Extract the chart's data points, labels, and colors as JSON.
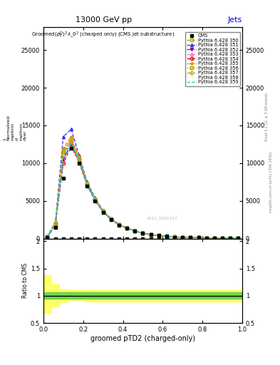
{
  "title_top": "13000 GeV pp",
  "title_right": "Jets",
  "xlabel": "groomed pTD2 (charged-only)",
  "ylabel_ratio": "Ratio to CMS",
  "watermark": "mcplots.cern.ch [arXiv:1306.3436]",
  "watermark2": "Rivet 3.1.10, ≥ 3.1M events",
  "ref_label": "CMS",
  "series": [
    {
      "label": "Pythia 6.428 350",
      "color": "#aaaa00",
      "linestyle": "--",
      "marker": "s",
      "fillstyle": "none"
    },
    {
      "label": "Pythia 6.428 351",
      "color": "#3333ff",
      "linestyle": "--",
      "marker": "^",
      "fillstyle": "full"
    },
    {
      "label": "Pythia 6.428 352",
      "color": "#7700bb",
      "linestyle": "-.",
      "marker": "v",
      "fillstyle": "full"
    },
    {
      "label": "Pythia 6.428 353",
      "color": "#ff66bb",
      "linestyle": "--",
      "marker": "^",
      "fillstyle": "none"
    },
    {
      "label": "Pythia 6.428 354",
      "color": "#cc0000",
      "linestyle": "--",
      "marker": "o",
      "fillstyle": "none"
    },
    {
      "label": "Pythia 6.428 355",
      "color": "#ff8800",
      "linestyle": "--",
      "marker": "*",
      "fillstyle": "full"
    },
    {
      "label": "Pythia 6.428 356",
      "color": "#88aa00",
      "linestyle": ":",
      "marker": "s",
      "fillstyle": "none"
    },
    {
      "label": "Pythia 6.428 357",
      "color": "#ccaa00",
      "linestyle": "-.",
      "marker": "D",
      "fillstyle": "none"
    },
    {
      "label": "Pythia 6.428 358",
      "color": "#99ff99",
      "linestyle": ":",
      "marker": "None",
      "fillstyle": "none"
    },
    {
      "label": "Pythia 6.428 359",
      "color": "#00cccc",
      "linestyle": "--",
      "marker": "None",
      "fillstyle": "none"
    }
  ],
  "x_bins": [
    0.0,
    0.04,
    0.08,
    0.12,
    0.16,
    0.2,
    0.24,
    0.28,
    0.32,
    0.36,
    0.4,
    0.44,
    0.48,
    0.52,
    0.56,
    0.6,
    0.64,
    0.68,
    0.72,
    0.76,
    0.8,
    0.84,
    0.88,
    0.92,
    0.96,
    1.0
  ],
  "ref_data": [
    200,
    1500,
    8000,
    12000,
    10000,
    7000,
    5000,
    3500,
    2500,
    1800,
    1400,
    1000,
    700,
    500,
    400,
    300,
    200,
    180,
    150,
    120,
    100,
    80,
    60,
    50,
    40
  ],
  "mc_data": [
    [
      250,
      2000,
      11000,
      13000,
      10500,
      7200,
      5200,
      3600,
      2600,
      1850,
      1400,
      1000,
      720,
      510,
      390,
      290,
      210,
      180,
      145,
      115,
      95,
      78,
      58,
      48,
      38
    ],
    [
      280,
      2200,
      13500,
      14500,
      11000,
      7500,
      5400,
      3700,
      2650,
      1880,
      1420,
      1010,
      730,
      515,
      395,
      295,
      215,
      182,
      148,
      118,
      97,
      80,
      60,
      50,
      39
    ],
    [
      220,
      1800,
      10500,
      12500,
      10200,
      7100,
      5100,
      3550,
      2550,
      1820,
      1380,
      990,
      710,
      505,
      388,
      288,
      208,
      178,
      142,
      112,
      93,
      76,
      56,
      46,
      37
    ],
    [
      230,
      1900,
      11500,
      12800,
      10400,
      7150,
      5150,
      3580,
      2580,
      1840,
      1390,
      995,
      715,
      508,
      391,
      291,
      211,
      179,
      144,
      114,
      94,
      77,
      57,
      47,
      37
    ],
    [
      210,
      1700,
      10000,
      12200,
      10100,
      7050,
      5050,
      3520,
      2520,
      1810,
      1370,
      985,
      705,
      502,
      385,
      285,
      205,
      175,
      140,
      110,
      91,
      74,
      54,
      44,
      36
    ],
    [
      260,
      2100,
      12000,
      13500,
      10800,
      7350,
      5300,
      3650,
      2620,
      1860,
      1410,
      1005,
      725,
      512,
      393,
      293,
      213,
      181,
      146,
      116,
      96,
      79,
      59,
      49,
      39
    ],
    [
      240,
      2050,
      11800,
      13200,
      10600,
      7250,
      5250,
      3620,
      2610,
      1855,
      1405,
      1002,
      722,
      511,
      392,
      292,
      212,
      180,
      145,
      115,
      95,
      78,
      58,
      48,
      38
    ],
    [
      235,
      2010,
      11600,
      13100,
      10550,
      7220,
      5220,
      3600,
      2595,
      1845,
      1395,
      998,
      718,
      509,
      390,
      290,
      210,
      179,
      144,
      114,
      94,
      77,
      57,
      47,
      37
    ],
    [
      215,
      1750,
      10200,
      12300,
      10150,
      7080,
      5080,
      3540,
      2540,
      1825,
      1375,
      988,
      708,
      504,
      386,
      286,
      206,
      176,
      141,
      111,
      92,
      75,
      55,
      45,
      36
    ],
    [
      225,
      1850,
      10800,
      12600,
      10300,
      7120,
      5120,
      3560,
      2560,
      1830,
      1380,
      992,
      712,
      506,
      388,
      288,
      208,
      178,
      143,
      113,
      93,
      76,
      56,
      46,
      37
    ]
  ],
  "xlim": [
    0.0,
    1.0
  ],
  "ylim_main": [
    0,
    28000
  ],
  "ylim_ratio": [
    0.5,
    2.05
  ],
  "yticks_main": [
    0,
    5000,
    10000,
    15000,
    20000,
    25000
  ],
  "ytick_labels_main": [
    "0",
    "5000",
    "10000",
    "15000",
    "20000",
    "25000"
  ],
  "yticks_ratio": [
    0.5,
    1.0,
    1.5,
    2.0
  ],
  "ytick_labels_ratio": [
    "0.5",
    "1",
    "1.5",
    "2"
  ],
  "bg_color": "#ffffff",
  "plot_title_line1": "Groomed",
  "plot_title_tex": "$(p_T^D)^2\\lambda\\_0^2$",
  "plot_title_line2": " (charged only) (CMS jet substructure)"
}
